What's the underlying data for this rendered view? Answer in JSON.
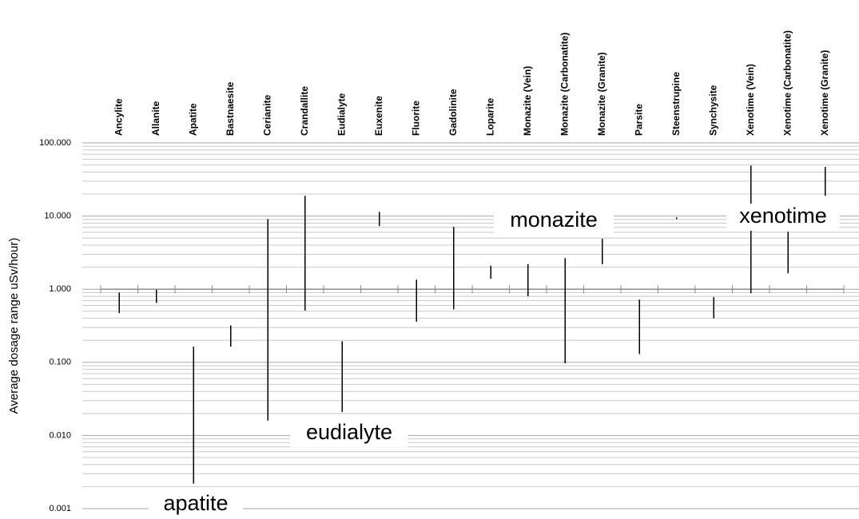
{
  "chart_data": {
    "type": "range",
    "y_label": "Average dosage range uSv/hour)",
    "categories": [
      "Ancylite",
      "Allanite",
      "Apatite",
      "Bastnaesite",
      "Cerianite",
      "Crandallite",
      "Eudialyte",
      "Euxenite",
      "Fluorite",
      "Gadolinite",
      "Loparite",
      "Monazite (Vein)",
      "Monazite (Carbonatite)",
      "Monazite (Granite)",
      "Parsite",
      "Steenstrupine",
      "Synchysite",
      "Xenotime (Vein)",
      "Xenotime (Carbonatite)",
      "Xenotime (Granite)"
    ],
    "low": [
      0.47,
      0.65,
      0.0022,
      0.164,
      0.016,
      0.51,
      0.021,
      7.3,
      0.36,
      0.53,
      1.39,
      0.8,
      0.097,
      2.2,
      0.13,
      9.1,
      0.4,
      0.88,
      1.65,
      18.9
    ],
    "high": [
      0.9,
      0.98,
      0.164,
      0.32,
      9.1,
      18.9,
      0.195,
      11.4,
      1.35,
      7.1,
      2.1,
      2.2,
      2.66,
      4.9,
      0.72,
      9.6,
      0.78,
      49,
      6.1,
      47
    ],
    "color": "#000000",
    "log_scale": true,
    "grid": true,
    "minor_grid": true,
    "ylim": [
      0.001,
      100
    ],
    "yticks": [
      {
        "value": 0.001,
        "label": "0.001"
      },
      {
        "value": 0.01,
        "label": "0.010"
      },
      {
        "value": 0.1,
        "label": "0.100"
      },
      {
        "value": 1,
        "label": "1.000"
      },
      {
        "value": 10,
        "label": "10.000"
      },
      {
        "value": 100,
        "label": "100.000"
      }
    ],
    "annotations": [
      "apatite",
      "eudialyte",
      "monazite",
      "xenotime"
    ]
  }
}
